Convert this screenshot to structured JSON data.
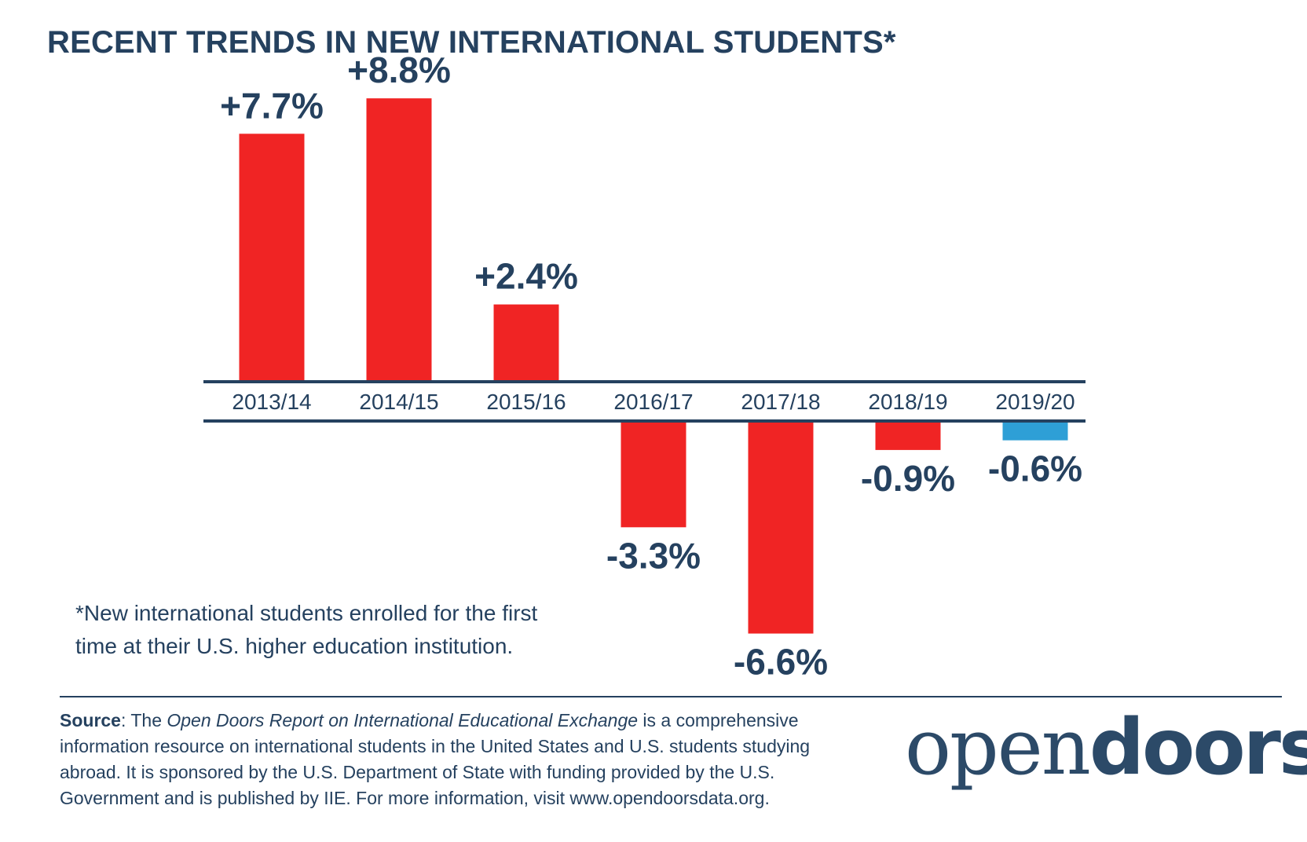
{
  "title": "RECENT TRENDS IN NEW INTERNATIONAL STUDENTS*",
  "colors": {
    "negative_highlight": "#2e9fd6",
    "bar": "#f02424",
    "axis": "#25415f",
    "text": "#25415f"
  },
  "chart_data": {
    "type": "bar",
    "title": "RECENT TRENDS IN NEW INTERNATIONAL STUDENTS*",
    "xlabel": "",
    "ylabel": "",
    "grid": false,
    "categories": [
      "2013/14",
      "2014/15",
      "2015/16",
      "2016/17",
      "2017/18",
      "2018/19",
      "2019/20"
    ],
    "values": [
      7.7,
      8.8,
      2.4,
      -3.3,
      -6.6,
      -0.9,
      -0.6
    ],
    "data_labels": [
      "+7.7%",
      "+8.8%",
      "+2.4%",
      "-3.3%",
      "-6.6%",
      "-0.9%",
      "-0.6%"
    ],
    "bar_colors": [
      "#f02424",
      "#f02424",
      "#f02424",
      "#f02424",
      "#f02424",
      "#f02424",
      "#2e9fd6"
    ]
  },
  "footnote": {
    "line1": "*New international students enrolled for the first",
    "line2": "time at their U.S. higher education institution."
  },
  "source": {
    "label": "Source",
    "lead": ": The ",
    "report_title": "Open Doors Report on International Educational Exchange",
    "line1_tail": " is a comprehensive",
    "line2": "information resource on international students in the United States and U.S. students studying",
    "line3": "abroad. It is sponsored by the U.S. Department of State with funding provided by the U.S.",
    "line4": "Government and is published by IIE. For more information, visit www.opendoorsdata.org."
  },
  "logo": {
    "light": "open",
    "bold": "doors",
    "mark": "®"
  }
}
